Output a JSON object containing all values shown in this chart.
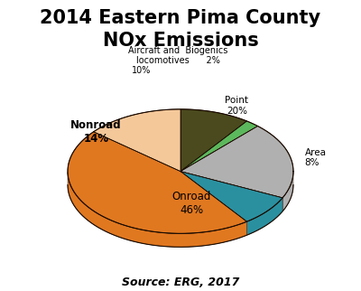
{
  "title": "2014 Eastern Pima County\nNOx Emissions",
  "slices": [
    {
      "label": "Aircraft and\nlocomotives\n10%",
      "pct": 10,
      "color": "#4a4a1e"
    },
    {
      "label": "Biogenics\n2%",
      "pct": 2,
      "color": "#5cb85c"
    },
    {
      "label": "Point\n20%",
      "pct": 20,
      "color": "#b0b0b0"
    },
    {
      "label": "Area\n8%",
      "pct": 8,
      "color": "#2a90a0"
    },
    {
      "label": "Onroad\n46%",
      "pct": 46,
      "color": "#e07820"
    },
    {
      "label": "Nonroad\n14%",
      "pct": 14,
      "color": "#f5c89a"
    }
  ],
  "depth_color": "#6b3300",
  "edge_color": "#1a0a00",
  "source": "Source: ERG, 2017",
  "startangle": 90,
  "bg": "#ffffff",
  "yscale": 0.55,
  "depth": 0.12
}
